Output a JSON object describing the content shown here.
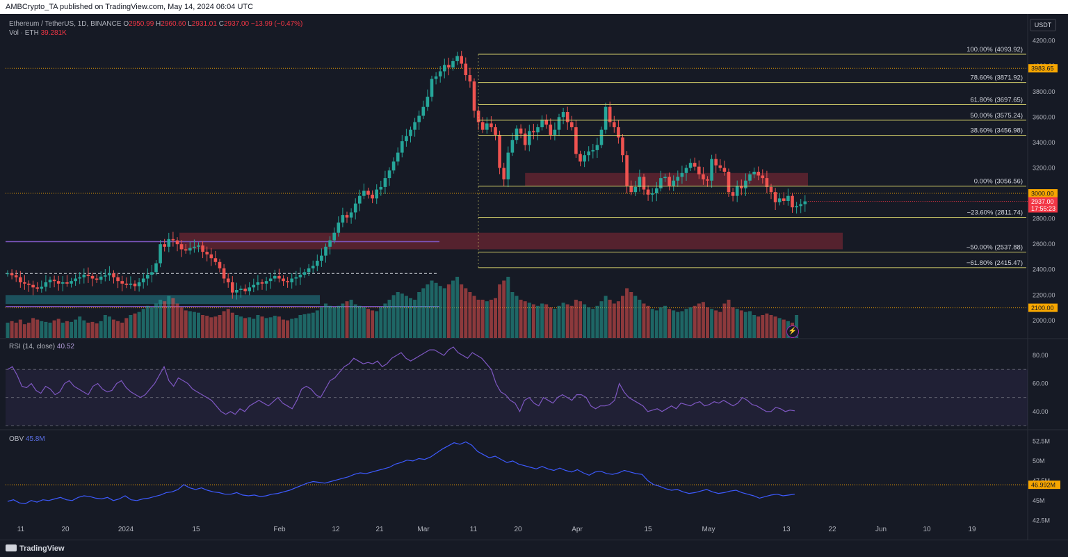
{
  "header": {
    "publisher_line": "AMBCrypto_TA published on TradingView.com, May 14, 2024 06:04 UTC"
  },
  "legend": {
    "symbol": "Ethereum / TetherUS, 1D, BINANCE",
    "o_label": "O",
    "o": "2950.99",
    "h_label": "H",
    "h": "2960.60",
    "l_label": "L",
    "l": "2931.01",
    "c_label": "C",
    "c": "2937.00",
    "change": "−13.99 (−0.47%)",
    "vol_label": "Vol · ETH",
    "vol": "39.281K",
    "rsi_label": "RSI (14, close)",
    "rsi": "40.52",
    "obv_label": "OBV",
    "obv": "45.8M"
  },
  "currency_button": "USDT",
  "footer": {
    "brand": "TradingView"
  },
  "colors": {
    "up": "#26a69a",
    "down": "#ef5350",
    "fib": "#d4cf6a",
    "orange": "#f7a600",
    "rsi": "#7e57c2",
    "obv": "#3d5afe",
    "zone_red": "#6b2531",
    "zone_teal": "#1e5f6b"
  },
  "chart_data": [
    {
      "type": "candlestick",
      "title": "Ethereum / TetherUS, 1D, BINANCE",
      "ylim": [
        1950,
        4220
      ],
      "y_ticks": [
        2000,
        2200,
        2400,
        2600,
        2800,
        3000,
        3200,
        3400,
        3600,
        3800,
        4000,
        4200
      ],
      "y_tick_labels": [
        "2000.00",
        "2200.00",
        "2400.00",
        "2600.00",
        "2800.00",
        "3000.00",
        "3200.00",
        "3400.00",
        "3600.00",
        "3800.00",
        "4000.00",
        "4200.00"
      ],
      "x_ticks": [
        "11",
        "20",
        "2024",
        "15",
        "Feb",
        "12",
        "21",
        "Mar",
        "11",
        "20",
        "Apr",
        "15",
        "May",
        "13",
        "22",
        "Jun",
        "10",
        "19"
      ],
      "closes": [
        2370,
        2355,
        2340,
        2300,
        2290,
        2280,
        2260,
        2250,
        2265,
        2300,
        2320,
        2310,
        2290,
        2300,
        2290,
        2310,
        2330,
        2340,
        2360,
        2350,
        2330,
        2320,
        2345,
        2355,
        2370,
        2340,
        2310,
        2290,
        2280,
        2290,
        2270,
        2300,
        2330,
        2360,
        2380,
        2450,
        2600,
        2580,
        2640,
        2630,
        2600,
        2560,
        2550,
        2570,
        2580,
        2590,
        2540,
        2520,
        2490,
        2460,
        2410,
        2330,
        2300,
        2220,
        2240,
        2250,
        2230,
        2260,
        2280,
        2300,
        2290,
        2310,
        2330,
        2350,
        2330,
        2310,
        2300,
        2330,
        2340,
        2360,
        2380,
        2410,
        2430,
        2470,
        2510,
        2580,
        2630,
        2690,
        2770,
        2830,
        2810,
        2850,
        2920,
        2980,
        3020,
        2990,
        2960,
        3030,
        3050,
        3120,
        3180,
        3250,
        3320,
        3410,
        3450,
        3500,
        3560,
        3610,
        3680,
        3760,
        3900,
        3920,
        3960,
        4010,
        3990,
        4040,
        4080,
        4020,
        3930,
        3880,
        3650,
        3560,
        3500,
        3550,
        3520,
        3460,
        3200,
        3110,
        3320,
        3420,
        3510,
        3470,
        3380,
        3490,
        3480,
        3520,
        3580,
        3540,
        3460,
        3500,
        3600,
        3640,
        3560,
        3520,
        3310,
        3250,
        3300,
        3330,
        3340,
        3380,
        3500,
        3680,
        3560,
        3520,
        3440,
        3300,
        3060,
        3010,
        3050,
        3130,
        3030,
        2990,
        3000,
        3040,
        3120,
        3130,
        3060,
        3100,
        3130,
        3160,
        3200,
        3240,
        3210,
        3150,
        3110,
        3100,
        3270,
        3220,
        3200,
        3170,
        3010,
        2980,
        3060,
        3040,
        3100,
        3150,
        3170,
        3140,
        3120,
        3050,
        3010,
        2930,
        2960,
        2940,
        2980,
        2890,
        2900,
        2915,
        2937
      ],
      "volume_scale": [
        0.2,
        0.22,
        0.2,
        0.24,
        0.18,
        0.2,
        0.26,
        0.24,
        0.22,
        0.21,
        0.2,
        0.23,
        0.25,
        0.2,
        0.22,
        0.21,
        0.24,
        0.28,
        0.23,
        0.2,
        0.21,
        0.19,
        0.22,
        0.3,
        0.28,
        0.24,
        0.22,
        0.2,
        0.26,
        0.3,
        0.32,
        0.34,
        0.38,
        0.42,
        0.4,
        0.45,
        0.5,
        0.48,
        0.55,
        0.52,
        0.45,
        0.4,
        0.36,
        0.35,
        0.34,
        0.33,
        0.3,
        0.29,
        0.27,
        0.28,
        0.3,
        0.35,
        0.38,
        0.33,
        0.3,
        0.28,
        0.26,
        0.27,
        0.25,
        0.3,
        0.28,
        0.26,
        0.27,
        0.29,
        0.28,
        0.24,
        0.23,
        0.25,
        0.26,
        0.3,
        0.31,
        0.32,
        0.33,
        0.36,
        0.4,
        0.45,
        0.42,
        0.4,
        0.42,
        0.45,
        0.48,
        0.5,
        0.44,
        0.42,
        0.4,
        0.38,
        0.36,
        0.35,
        0.4,
        0.45,
        0.5,
        0.56,
        0.6,
        0.58,
        0.55,
        0.52,
        0.5,
        0.6,
        0.65,
        0.7,
        0.75,
        0.72,
        0.68,
        0.65,
        0.7,
        0.75,
        0.8,
        0.7,
        0.65,
        0.6,
        0.55,
        0.5,
        0.5,
        0.48,
        0.5,
        0.52,
        0.7,
        0.75,
        0.8,
        0.6,
        0.55,
        0.5,
        0.48,
        0.46,
        0.44,
        0.42,
        0.45,
        0.44,
        0.4,
        0.38,
        0.42,
        0.46,
        0.44,
        0.42,
        0.5,
        0.48,
        0.44,
        0.4,
        0.38,
        0.42,
        0.48,
        0.55,
        0.5,
        0.45,
        0.48,
        0.55,
        0.65,
        0.6,
        0.55,
        0.5,
        0.45,
        0.42,
        0.38,
        0.36,
        0.4,
        0.42,
        0.38,
        0.36,
        0.34,
        0.35,
        0.38,
        0.4,
        0.42,
        0.45,
        0.47,
        0.4,
        0.38,
        0.36,
        0.34,
        0.45,
        0.5,
        0.4,
        0.38,
        0.36,
        0.34,
        0.35,
        0.3,
        0.28,
        0.3,
        0.32,
        0.3,
        0.28,
        0.26,
        0.24,
        0.22,
        0.2,
        0.3
      ],
      "fibonacci": [
        {
          "label": "100.00% (4093.92)",
          "price": 4093.92
        },
        {
          "label": "78.60% (3871.92)",
          "price": 3871.92
        },
        {
          "label": "61.80% (3697.65)",
          "price": 3697.65
        },
        {
          "label": "50.00% (3575.24)",
          "price": 3575.24
        },
        {
          "label": "38.60% (3456.98)",
          "price": 3456.98
        },
        {
          "label": "0.00% (3056.56)",
          "price": 3056.56
        },
        {
          "label": "−23.60% (2811.74)",
          "price": 2811.74
        },
        {
          "label": "−50.00% (2537.88)",
          "price": 2537.88
        },
        {
          "label": "−61.80% (2415.47)",
          "price": 2415.47
        }
      ],
      "horizontal_levels": [
        {
          "label": "3983.65",
          "price": 3983.65
        },
        {
          "label": "3000.00",
          "price": 3000.0
        },
        {
          "label": "2100.00",
          "price": 2100.0
        }
      ],
      "zones": [
        {
          "name": "supply-zone-upper",
          "from": 3060,
          "to": 3160
        },
        {
          "name": "demand-zone-lower",
          "from": 2560,
          "to": 2690
        },
        {
          "name": "teal-demand-zone",
          "from": 2130,
          "to": 2200
        }
      ],
      "current_price": {
        "price": "2937.00",
        "countdown": "17:55:23"
      }
    },
    {
      "type": "line",
      "title": "RSI (14, close)",
      "ylim": [
        28,
        88
      ],
      "y_ticks": [
        40,
        60,
        80
      ],
      "y_tick_labels": [
        "40.00",
        "60.00",
        "80.00"
      ],
      "bands": [
        30,
        50,
        70
      ],
      "values": [
        70,
        72,
        66,
        58,
        57,
        60,
        55,
        53,
        58,
        56,
        52,
        54,
        60,
        62,
        58,
        56,
        54,
        52,
        58,
        60,
        56,
        54,
        55,
        60,
        62,
        57,
        54,
        52,
        50,
        52,
        56,
        60,
        66,
        72,
        62,
        58,
        64,
        62,
        60,
        56,
        54,
        52,
        50,
        48,
        44,
        40,
        38,
        40,
        38,
        42,
        40,
        44,
        46,
        48,
        46,
        44,
        47,
        50,
        46,
        44,
        42,
        48,
        56,
        58,
        56,
        52,
        50,
        56,
        62,
        64,
        68,
        72,
        74,
        78,
        76,
        74,
        75,
        74,
        76,
        72,
        74,
        78,
        80,
        82,
        78,
        76,
        78,
        80,
        82,
        84,
        84,
        82,
        80,
        84,
        86,
        82,
        80,
        78,
        82,
        80,
        78,
        74,
        70,
        60,
        54,
        52,
        48,
        46,
        40,
        48,
        50,
        46,
        44,
        50,
        48,
        46,
        50,
        52,
        50,
        48,
        52,
        52,
        50,
        44,
        42,
        44,
        44,
        45,
        48,
        60,
        54,
        50,
        48,
        46,
        44,
        40,
        41,
        42,
        40,
        42,
        44,
        42,
        46,
        45,
        44,
        46,
        47,
        44,
        45,
        47,
        46,
        48,
        46,
        44,
        46,
        50,
        48,
        45,
        44,
        42,
        40,
        40,
        43,
        42,
        40,
        41,
        40.52
      ]
    },
    {
      "type": "line",
      "title": "OBV",
      "ylim": [
        42,
        53.5
      ],
      "y_ticks": [
        42.5,
        45,
        47.5,
        50,
        52.5
      ],
      "y_tick_labels": [
        "42.5M",
        "45M",
        "47.5M",
        "50M",
        "52.5M"
      ],
      "orange_level": {
        "label": "46.992M",
        "value": 46.992
      },
      "values": [
        44.9,
        45.1,
        44.7,
        44.6,
        45.0,
        44.8,
        45.1,
        45.0,
        45.2,
        45.4,
        45.1,
        45.0,
        45.4,
        45.6,
        45.5,
        45.3,
        45.2,
        45.4,
        45.0,
        45.2,
        45.6,
        45.1,
        45.0,
        45.2,
        45.3,
        45.5,
        45.7,
        46.0,
        46.1,
        46.4,
        47.0,
        46.6,
        46.4,
        46.6,
        46.3,
        46.1,
        46.0,
        45.8,
        45.8,
        46.0,
        45.7,
        45.6,
        45.7,
        45.5,
        45.6,
        45.8,
        45.9,
        46.1,
        46.3,
        46.6,
        46.9,
        47.2,
        47.4,
        47.3,
        47.2,
        47.4,
        47.6,
        47.8,
        48.0,
        48.3,
        48.5,
        48.4,
        48.6,
        48.8,
        49.0,
        49.2,
        49.6,
        49.8,
        50.1,
        50.0,
        50.3,
        50.2,
        50.5,
        51.0,
        51.5,
        51.9,
        52.3,
        52.1,
        52.4,
        52.0,
        51.2,
        50.8,
        50.4,
        50.6,
        50.2,
        49.8,
        50.0,
        49.6,
        49.4,
        49.2,
        49.0,
        49.3,
        49.0,
        48.8,
        49.1,
        48.8,
        48.6,
        48.9,
        48.5,
        48.2,
        48.6,
        48.7,
        48.4,
        48.3,
        48.5,
        48.8,
        48.6,
        48.4,
        48.3,
        47.5,
        47.0,
        46.8,
        46.5,
        46.3,
        46.4,
        46.1,
        45.9,
        46.0,
        46.2,
        46.4,
        46.1,
        45.9,
        46.0,
        46.2,
        46.3,
        46.0,
        45.8,
        45.6,
        45.3,
        45.5,
        45.7,
        45.8,
        45.6,
        45.7,
        45.8
      ]
    }
  ]
}
